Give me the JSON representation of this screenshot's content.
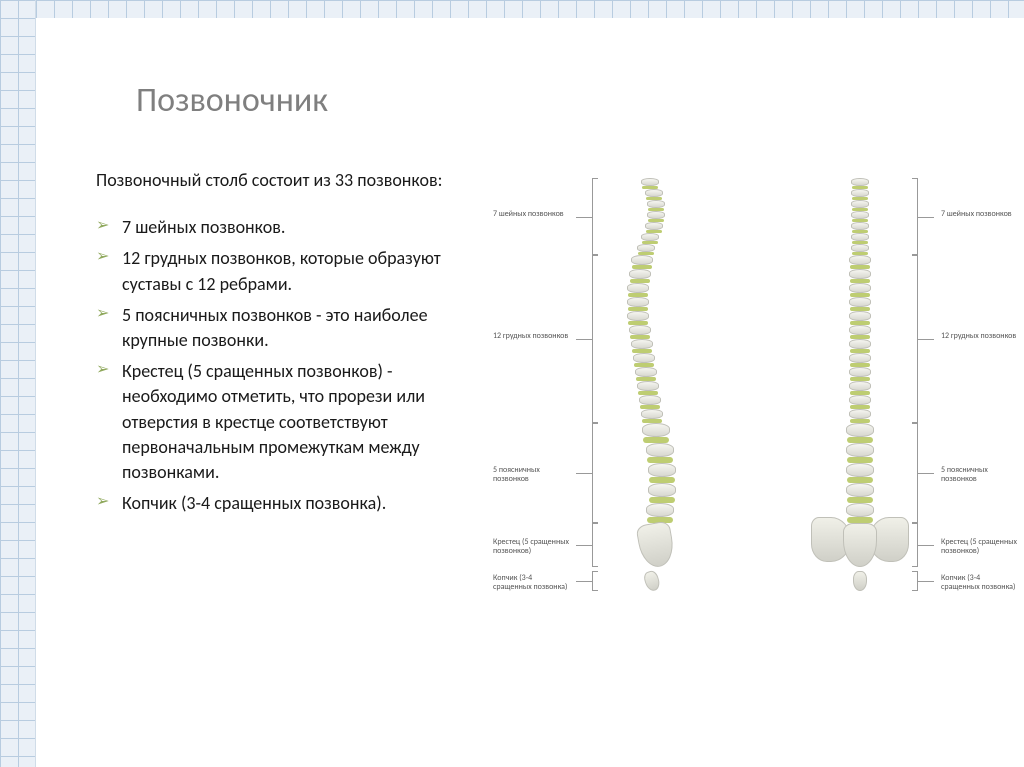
{
  "title": "Позвоночник",
  "intro": "Позвоночный столб состоит из 33 позвонков:",
  "bullets": [
    "7 шейных позвонков.",
    "12 грудных позвонков, которые образуют суставы с 12 ребрами.",
    "5 поясничных позвонков - это наиболее крупные позвонки.",
    "Крестец (5 сращенных позвонков) - необходимо отметить, что прорези или отверстия в крестце соответствуют первоначальным промежуткам между позвонками.",
    "Копчик (3-4 сращенных позвонка)."
  ],
  "spine_segments": [
    {
      "name": "cervical",
      "count": 7,
      "label": "7 шейных позвонков",
      "vert_w": 18,
      "vert_h": 8,
      "disc_h": 3
    },
    {
      "name": "thoracic",
      "count": 12,
      "label": "12 грудных позвонков",
      "vert_w": 22,
      "vert_h": 10,
      "disc_h": 4
    },
    {
      "name": "lumbar",
      "count": 5,
      "label": "5 поясничных позвонков",
      "vert_w": 28,
      "vert_h": 14,
      "disc_h": 6
    },
    {
      "name": "sacrum",
      "count": 1,
      "label": "Крестец (5 сращенных позвонков)",
      "vert_w": 34,
      "vert_h": 44
    },
    {
      "name": "coccyx",
      "count": 1,
      "label": "Копчик (3-4 сращенных позвонка)",
      "vert_w": 14,
      "vert_h": 20
    }
  ],
  "lateral_curve": [
    0,
    4,
    6,
    6,
    4,
    0,
    -4,
    -8,
    -10,
    -12,
    -12,
    -12,
    -10,
    -8,
    -6,
    -4,
    -2,
    0,
    2,
    6,
    10,
    12,
    12,
    10
  ],
  "colors": {
    "title": "#7f7f7f",
    "bullet_marker": "#8fa85c",
    "text": "#1a1a1a",
    "bone_light": "#f5f5f0",
    "bone_dark": "#d8d8d0",
    "bone_border": "#c0c0b8",
    "disc": "#becd72",
    "label_text": "#555555",
    "label_line": "#999999",
    "grid_line": "#b8cce0",
    "grid_bg": "#eaf0f7",
    "background": "#ffffff"
  },
  "layout": {
    "slide_width": 1024,
    "slide_height": 767,
    "title_fontsize": 34,
    "body_fontsize": 18,
    "label_fontsize": 8,
    "spine_gap": 150,
    "spine_height": 540
  }
}
